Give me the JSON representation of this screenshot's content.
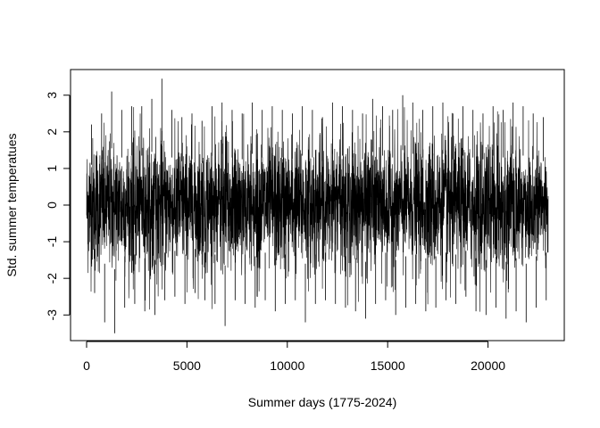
{
  "chart_data": {
    "type": "line",
    "title": "",
    "xlabel": "Summer days (1775-2024)",
    "ylabel": "Std. summer temperatues",
    "xlim": [
      -800,
      23800
    ],
    "ylim": [
      -3.7,
      3.7
    ],
    "x_ticks": [
      0,
      5000,
      10000,
      15000,
      20000
    ],
    "x_tick_labels": [
      "0",
      "5000",
      "10000",
      "15000",
      "20000"
    ],
    "y_ticks": [
      -3,
      -2,
      -1,
      0,
      1,
      2,
      3
    ],
    "y_tick_labels": [
      "-3",
      "-2",
      "-1",
      "0",
      "1",
      "2",
      "3"
    ],
    "grid": false,
    "legend": "none",
    "line_color": "#000000",
    "series": [
      {
        "n_points": 23000,
        "x_start": 1,
        "x_end": 23000,
        "mean": 0,
        "sd": 1,
        "max": 3.45,
        "min": -3.5,
        "envelope_step": 500,
        "upper_envelope": [
          2.2,
          2.5,
          3.1,
          2.6,
          2.7,
          2.7,
          2.9,
          3.45,
          2.6,
          2.4,
          2.5,
          2.3,
          2.7,
          2.8,
          2.6,
          2.5,
          2.8,
          2.6,
          2.7,
          2.6,
          2.5,
          2.7,
          2.6,
          2.4,
          2.8,
          2.7,
          2.6,
          2.5,
          2.9,
          2.7,
          2.6,
          3.0,
          2.8,
          2.6,
          2.7,
          2.8,
          2.5,
          2.7,
          2.6,
          2.5,
          2.7,
          2.6,
          2.8,
          2.7,
          2.5,
          2.4
        ],
        "lower_envelope": [
          -2.4,
          -3.2,
          -3.5,
          -2.8,
          -2.7,
          -2.9,
          -3.0,
          -2.6,
          -2.5,
          -2.7,
          -2.4,
          -2.6,
          -2.7,
          -3.3,
          -2.6,
          -2.7,
          -2.8,
          -2.6,
          -2.9,
          -2.7,
          -2.6,
          -3.2,
          -2.7,
          -2.6,
          -2.7,
          -2.8,
          -2.9,
          -3.1,
          -2.7,
          -2.6,
          -3.0,
          -2.8,
          -2.7,
          -2.9,
          -2.8,
          -2.6,
          -2.7,
          -2.5,
          -2.9,
          -3.0,
          -2.8,
          -3.1,
          -2.9,
          -3.2,
          -2.8,
          -2.6
        ]
      }
    ]
  }
}
